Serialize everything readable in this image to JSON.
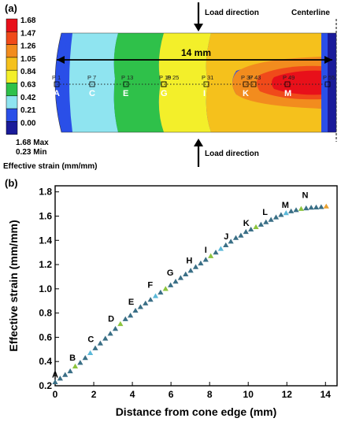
{
  "panel_a": {
    "label": "(a)",
    "load_direction_top": "Load direction",
    "load_direction_bottom": "Load direction",
    "centerline": "Centerline",
    "dimension": "14 mm",
    "colorbar": {
      "ticks": [
        "1.68",
        "1.47",
        "1.26",
        "1.05",
        "0.84",
        "0.63",
        "0.42",
        "0.21",
        "0.00"
      ],
      "colors": [
        "#e8101a",
        "#f04a1a",
        "#f28c1e",
        "#f5c11c",
        "#f3ef2a",
        "#2fc14a",
        "#8fe4f0",
        "#2a4fe8",
        "#1a1b9a"
      ],
      "max_text": "1.68 Max",
      "min_text": "0.23 Min",
      "title": "Effective strain (mm/mm)"
    },
    "points": [
      {
        "p": "P 1",
        "letter": "A"
      },
      {
        "p": "P 7",
        "letter": "C"
      },
      {
        "p": "P 13",
        "letter": "E"
      },
      {
        "p": "P 19",
        "letter": "G"
      },
      {
        "p": "P 25",
        "letter": ""
      },
      {
        "p": "P 31",
        "letter": "I"
      },
      {
        "p": "P 37",
        "letter": "K"
      },
      {
        "p": "P 43",
        "letter": ""
      },
      {
        "p": "P 49",
        "letter": "M"
      },
      {
        "p": "P 55",
        "letter": ""
      }
    ]
  },
  "panel_b": {
    "label": "(b)"
  },
  "chart_data": {
    "type": "scatter",
    "title": "",
    "xlabel": "Distance from cone edge (mm)",
    "ylabel": "Effective strain (mm/mm)",
    "xlim": [
      0,
      14.6
    ],
    "ylim": [
      0.2,
      1.85
    ],
    "xticks": [
      0,
      2,
      4,
      6,
      8,
      10,
      12,
      14
    ],
    "yticks": [
      0.2,
      0.4,
      0.6,
      0.8,
      1.0,
      1.2,
      1.4,
      1.6,
      1.8
    ],
    "ytick_labels": [
      "0.2",
      "0.4",
      "0.6",
      "0.8",
      "1.0",
      "1.2",
      "1.4",
      "1.6",
      "1.8"
    ],
    "marker_colors": [
      "#3a6f86",
      "#8cc43e",
      "#e8a030",
      "#5ab8d8"
    ],
    "series": [
      {
        "x": [
          0,
          0.26,
          0.52,
          0.78,
          1.04,
          1.3,
          1.56,
          1.82,
          2.08,
          2.34,
          2.6,
          2.86,
          3.12,
          3.38,
          3.64,
          3.9,
          4.16,
          4.42,
          4.68,
          4.94,
          5.2,
          5.46,
          5.72,
          5.98,
          6.24,
          6.5,
          6.76,
          7.02,
          7.28,
          7.54,
          7.8,
          8.06,
          8.32,
          8.58,
          8.84,
          9.1,
          9.36,
          9.62,
          9.88,
          10.14,
          10.4,
          10.66,
          10.92,
          11.18,
          11.44,
          11.7,
          11.96,
          12.22,
          12.48,
          12.74,
          13.0,
          13.26,
          13.52,
          13.78,
          14.04
        ],
        "y": [
          0.23,
          0.26,
          0.29,
          0.32,
          0.36,
          0.39,
          0.43,
          0.47,
          0.51,
          0.55,
          0.59,
          0.63,
          0.67,
          0.71,
          0.75,
          0.78,
          0.82,
          0.85,
          0.88,
          0.91,
          0.94,
          0.97,
          1.0,
          1.03,
          1.06,
          1.09,
          1.12,
          1.15,
          1.18,
          1.21,
          1.24,
          1.27,
          1.3,
          1.33,
          1.36,
          1.39,
          1.42,
          1.44,
          1.47,
          1.49,
          1.51,
          1.53,
          1.55,
          1.57,
          1.59,
          1.61,
          1.625,
          1.64,
          1.65,
          1.66,
          1.665,
          1.67,
          1.672,
          1.675,
          1.68
        ]
      }
    ],
    "annotations": [
      {
        "text": "A",
        "x": 0.0,
        "y": 0.23
      },
      {
        "text": "B",
        "x": 0.9,
        "y": 0.37
      },
      {
        "text": "C",
        "x": 1.85,
        "y": 0.52
      },
      {
        "text": "D",
        "x": 2.9,
        "y": 0.69
      },
      {
        "text": "E",
        "x": 3.95,
        "y": 0.83
      },
      {
        "text": "F",
        "x": 4.95,
        "y": 0.97
      },
      {
        "text": "G",
        "x": 5.95,
        "y": 1.07
      },
      {
        "text": "H",
        "x": 6.95,
        "y": 1.17
      },
      {
        "text": "I",
        "x": 7.9,
        "y": 1.26
      },
      {
        "text": "J",
        "x": 8.9,
        "y": 1.37
      },
      {
        "text": "K",
        "x": 9.9,
        "y": 1.48
      },
      {
        "text": "L",
        "x": 10.9,
        "y": 1.57
      },
      {
        "text": "M",
        "x": 11.9,
        "y": 1.63
      },
      {
        "text": "N",
        "x": 12.95,
        "y": 1.71
      }
    ]
  }
}
